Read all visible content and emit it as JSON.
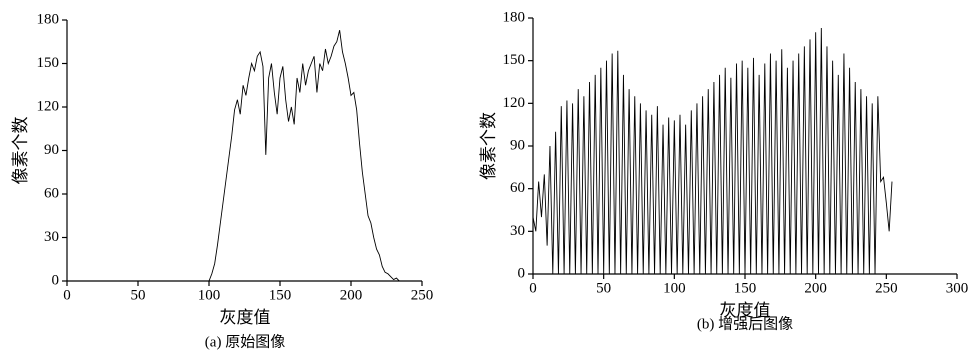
{
  "chart_data": [
    {
      "type": "line",
      "ylabel": "像素个数",
      "xlabel": "灰度值",
      "caption": "(a) 原始图像",
      "color": "#000000",
      "x": [
        0,
        100,
        102,
        104,
        106,
        108,
        110,
        112,
        114,
        116,
        118,
        120,
        122,
        124,
        126,
        128,
        130,
        132,
        134,
        136,
        138,
        140,
        142,
        144,
        146,
        148,
        150,
        152,
        154,
        156,
        158,
        160,
        162,
        164,
        166,
        168,
        170,
        172,
        174,
        176,
        178,
        180,
        182,
        184,
        186,
        188,
        190,
        192,
        194,
        196,
        198,
        200,
        202,
        204,
        206,
        208,
        210,
        212,
        214,
        216,
        218,
        220,
        222,
        224,
        226,
        228,
        230,
        232,
        234
      ],
      "values": [
        0,
        0,
        5,
        12,
        25,
        40,
        55,
        70,
        85,
        100,
        118,
        125,
        115,
        135,
        128,
        140,
        150,
        145,
        155,
        158,
        148,
        87,
        140,
        150,
        130,
        115,
        140,
        148,
        125,
        110,
        120,
        108,
        140,
        130,
        150,
        135,
        145,
        150,
        155,
        130,
        150,
        145,
        160,
        150,
        155,
        162,
        165,
        173,
        158,
        150,
        140,
        128,
        130,
        118,
        95,
        75,
        60,
        45,
        40,
        30,
        22,
        18,
        10,
        6,
        5,
        3,
        1,
        2,
        0
      ],
      "xlim": [
        0,
        250
      ],
      "xticks": [
        0,
        50,
        100,
        150,
        200,
        250
      ],
      "ylim": [
        0,
        180
      ],
      "yticks": [
        0,
        30,
        60,
        90,
        120,
        150,
        180
      ]
    },
    {
      "type": "line",
      "ylabel": "像素个数",
      "xlabel": "灰度值",
      "caption": "(b) 增强后图像",
      "color": "#000000",
      "x": [
        0,
        2,
        4,
        6,
        8,
        10,
        12,
        14,
        16,
        18,
        20,
        22,
        24,
        26,
        28,
        30,
        32,
        34,
        36,
        38,
        40,
        42,
        44,
        46,
        48,
        50,
        52,
        54,
        56,
        58,
        60,
        62,
        64,
        66,
        68,
        70,
        72,
        74,
        76,
        78,
        80,
        82,
        84,
        86,
        88,
        90,
        92,
        94,
        96,
        98,
        100,
        102,
        104,
        106,
        108,
        110,
        112,
        114,
        116,
        118,
        120,
        122,
        124,
        126,
        128,
        130,
        132,
        134,
        136,
        138,
        140,
        142,
        144,
        146,
        148,
        150,
        152,
        154,
        156,
        158,
        160,
        162,
        164,
        166,
        168,
        170,
        172,
        174,
        176,
        178,
        180,
        182,
        184,
        186,
        188,
        190,
        192,
        194,
        196,
        198,
        200,
        202,
        204,
        206,
        208,
        210,
        212,
        214,
        216,
        218,
        220,
        222,
        224,
        226,
        228,
        230,
        232,
        234,
        236,
        238,
        240,
        242,
        244,
        246,
        248,
        250,
        252,
        254
      ],
      "values": [
        40,
        30,
        65,
        40,
        70,
        20,
        90,
        0,
        100,
        0,
        118,
        0,
        122,
        0,
        120,
        0,
        130,
        0,
        125,
        0,
        135,
        0,
        140,
        0,
        145,
        0,
        150,
        0,
        155,
        0,
        157,
        0,
        140,
        0,
        130,
        0,
        125,
        0,
        120,
        0,
        115,
        0,
        112,
        0,
        118,
        0,
        105,
        0,
        110,
        0,
        108,
        0,
        112,
        0,
        105,
        0,
        115,
        0,
        120,
        0,
        125,
        0,
        130,
        0,
        135,
        0,
        140,
        0,
        145,
        0,
        138,
        0,
        148,
        0,
        150,
        0,
        145,
        0,
        152,
        0,
        140,
        0,
        148,
        0,
        155,
        0,
        150,
        0,
        158,
        0,
        145,
        0,
        150,
        0,
        155,
        0,
        160,
        0,
        165,
        0,
        170,
        0,
        173,
        0,
        160,
        0,
        150,
        0,
        140,
        0,
        155,
        0,
        145,
        0,
        135,
        0,
        130,
        0,
        125,
        0,
        120,
        0,
        125,
        65,
        68,
        50,
        30,
        65
      ],
      "xlim": [
        0,
        300
      ],
      "xticks": [
        0,
        50,
        100,
        150,
        200,
        250,
        300
      ],
      "ylim": [
        0,
        180
      ],
      "yticks": [
        0,
        30,
        60,
        90,
        120,
        150,
        180
      ]
    }
  ]
}
